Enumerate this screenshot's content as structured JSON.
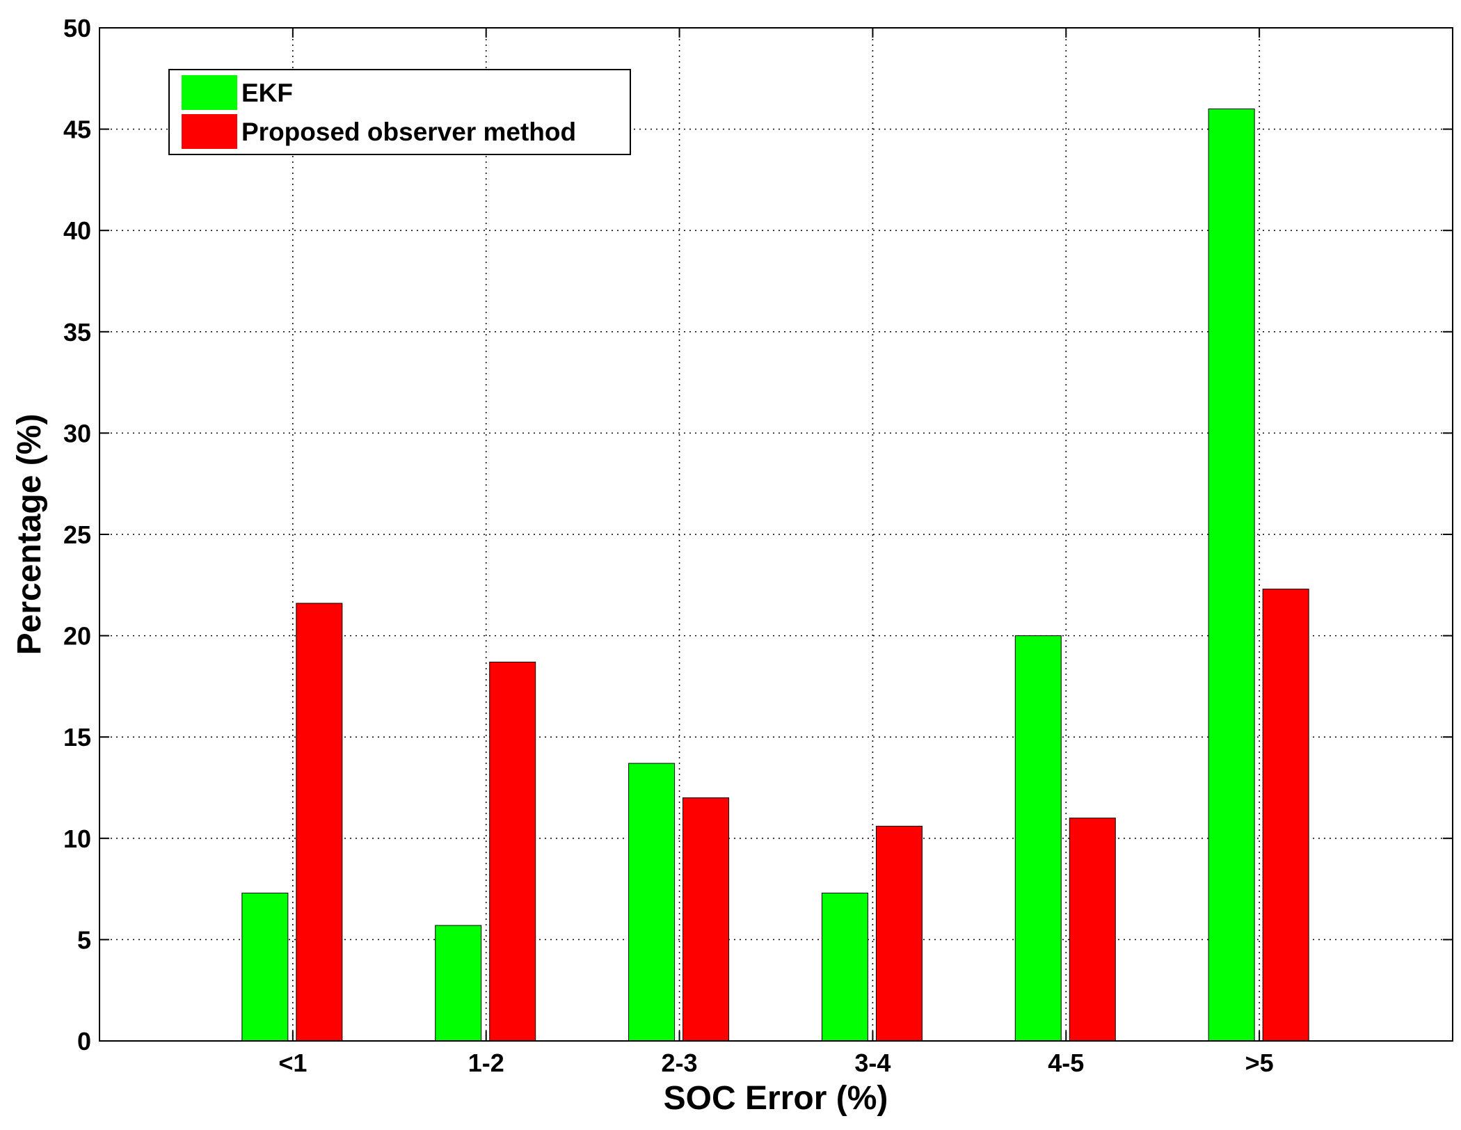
{
  "chart_data": {
    "type": "bar",
    "title": "",
    "xlabel": "SOC Error (%)",
    "ylabel": "Percentage (%)",
    "categories": [
      "<1",
      "1-2",
      "2-3",
      "3-4",
      "4-5",
      ">5"
    ],
    "ylim": [
      0,
      50
    ],
    "yticks": [
      0,
      5,
      10,
      15,
      20,
      25,
      30,
      35,
      40,
      45,
      50
    ],
    "grid": true,
    "legend_position": "top-left",
    "series": [
      {
        "name": "EKF",
        "color": "#00ff00",
        "values": [
          7.3,
          5.7,
          13.7,
          7.3,
          20.0,
          46.0
        ]
      },
      {
        "name": "Proposed observer method",
        "color": "#ff0000",
        "values": [
          21.6,
          18.7,
          12.0,
          10.6,
          11.0,
          22.3
        ]
      }
    ]
  }
}
